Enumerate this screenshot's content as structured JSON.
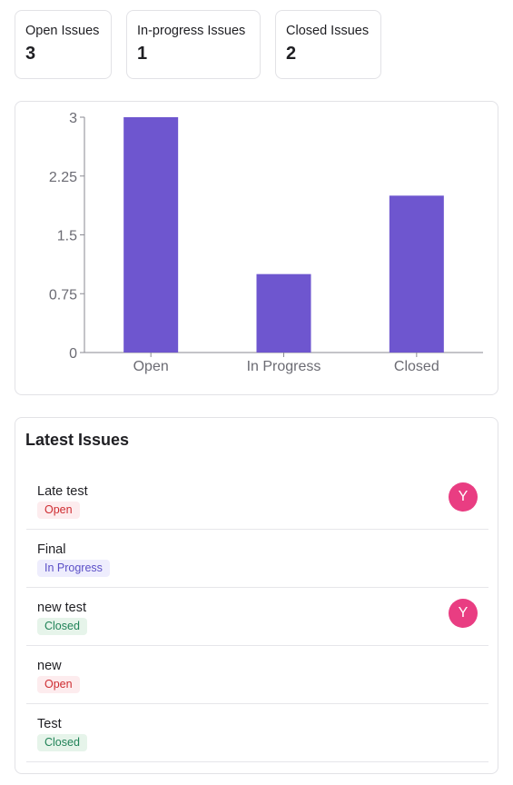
{
  "summary": [
    {
      "label": "Open Issues",
      "value": "3"
    },
    {
      "label": "In-progress Issues",
      "value": "1"
    },
    {
      "label": "Closed Issues",
      "value": "2"
    }
  ],
  "colors": {
    "bar": "#6e56cf",
    "open_badge_bg": "#fdecee",
    "open_badge_text": "#ce2c31",
    "progress_badge_bg": "#eeedfd",
    "progress_badge_text": "#5b4fc7",
    "closed_badge_bg": "#e6f4ea",
    "closed_badge_text": "#218358",
    "avatar_bg": "#e93d82"
  },
  "chart_data": {
    "type": "bar",
    "categories": [
      "Open",
      "In Progress",
      "Closed"
    ],
    "values": [
      3,
      1,
      2
    ],
    "ylim": [
      0,
      3
    ],
    "yticks": [
      "0",
      "0.75",
      "1.5",
      "2.25",
      "3"
    ],
    "title": "",
    "xlabel": "",
    "ylabel": "",
    "grid": false
  },
  "latest": {
    "title": "Latest Issues",
    "issues": [
      {
        "title": "Late test",
        "status": "Open",
        "status_key": "open",
        "avatar": "Y"
      },
      {
        "title": "Final",
        "status": "In Progress",
        "status_key": "progress",
        "avatar": ""
      },
      {
        "title": "new test",
        "status": "Closed",
        "status_key": "closed",
        "avatar": "Y"
      },
      {
        "title": "new",
        "status": "Open",
        "status_key": "open",
        "avatar": ""
      },
      {
        "title": "Test",
        "status": "Closed",
        "status_key": "closed",
        "avatar": ""
      }
    ]
  }
}
